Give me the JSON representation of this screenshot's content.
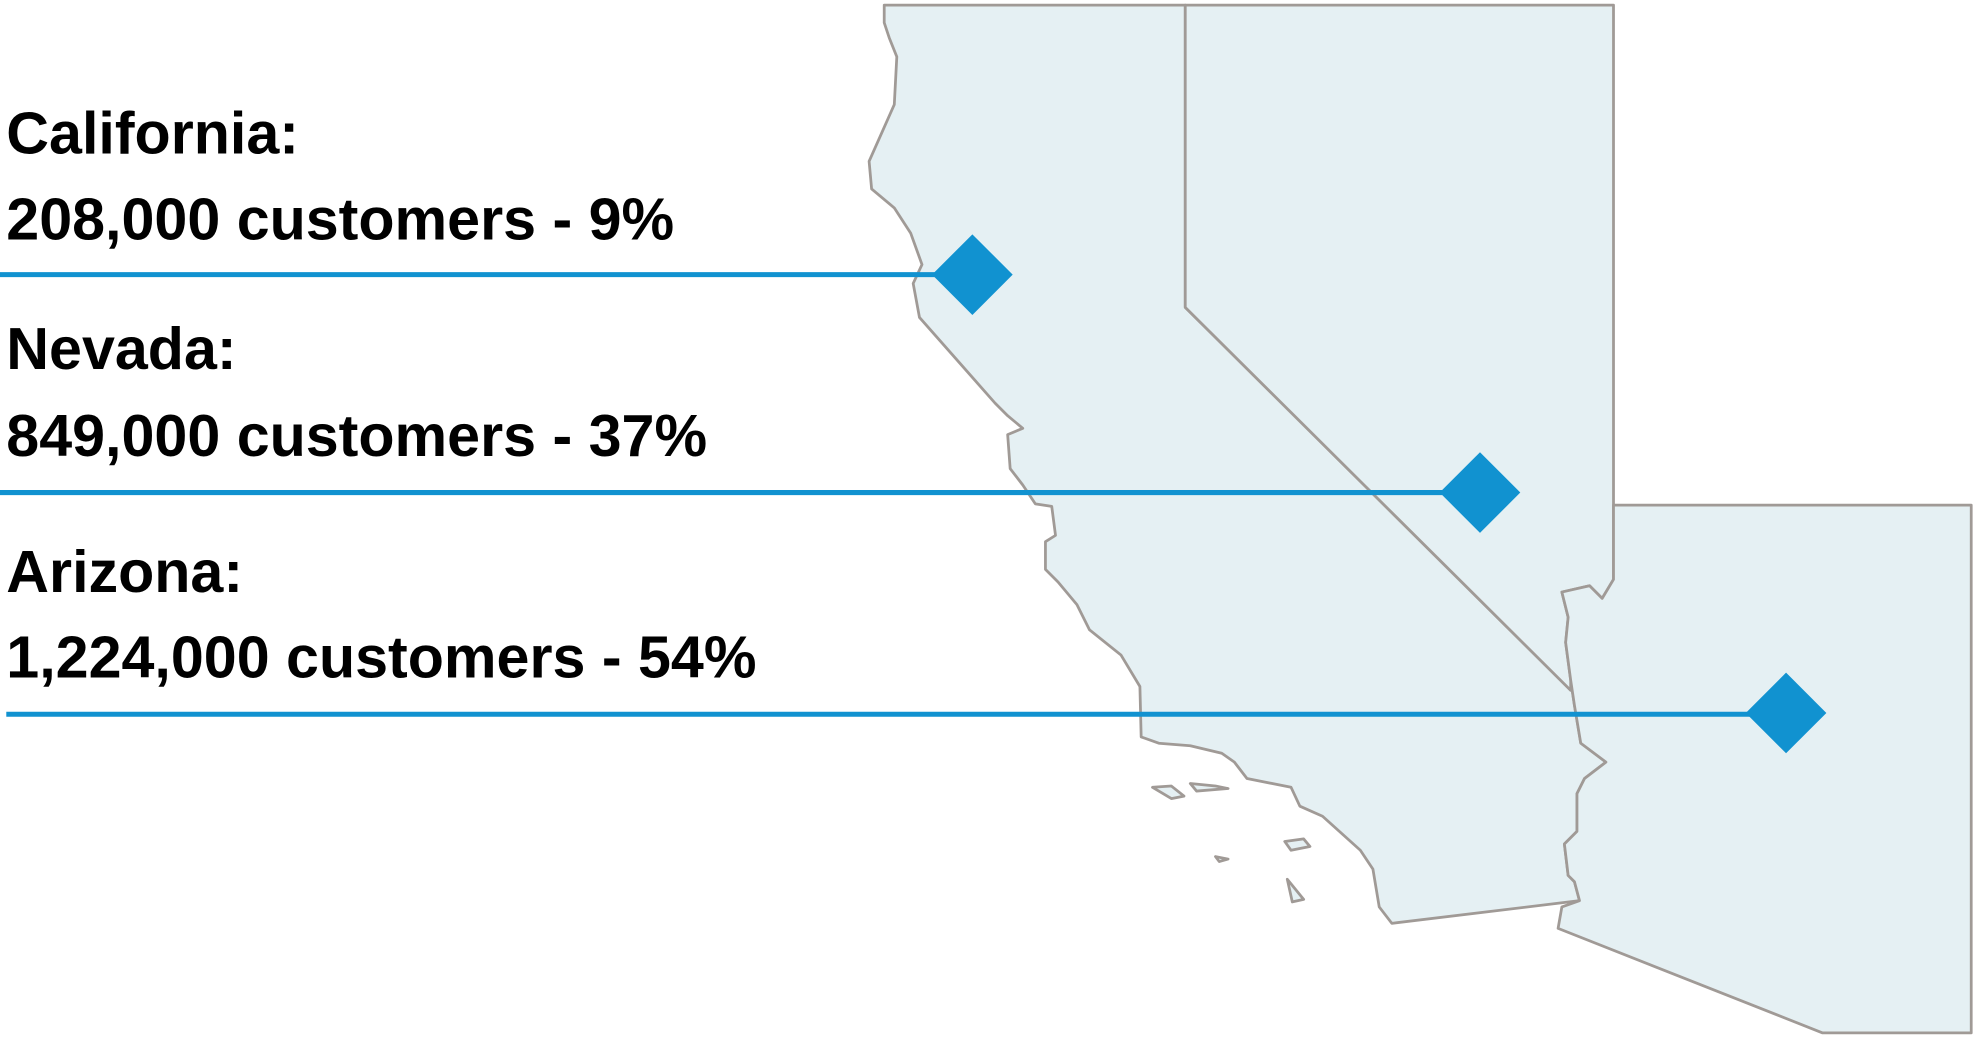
{
  "colors": {
    "state_fill": "#e5f0f3",
    "state_border": "#a09a96",
    "accent": "#1192d0",
    "text": "#000000"
  },
  "states": [
    {
      "name": "California",
      "label": "California:",
      "detail": "208,000 customers - 9%",
      "customers": 208000,
      "percent": 9
    },
    {
      "name": "Nevada",
      "label": "Nevada:",
      "detail": "849,000 customers - 37%",
      "customers": 849000,
      "percent": 37
    },
    {
      "name": "Arizona",
      "label": "Arizona:",
      "detail": "1,224,000 customers - 54%",
      "customers": 1224000,
      "percent": 54
    }
  ],
  "marker_icon": "diamond-marker"
}
